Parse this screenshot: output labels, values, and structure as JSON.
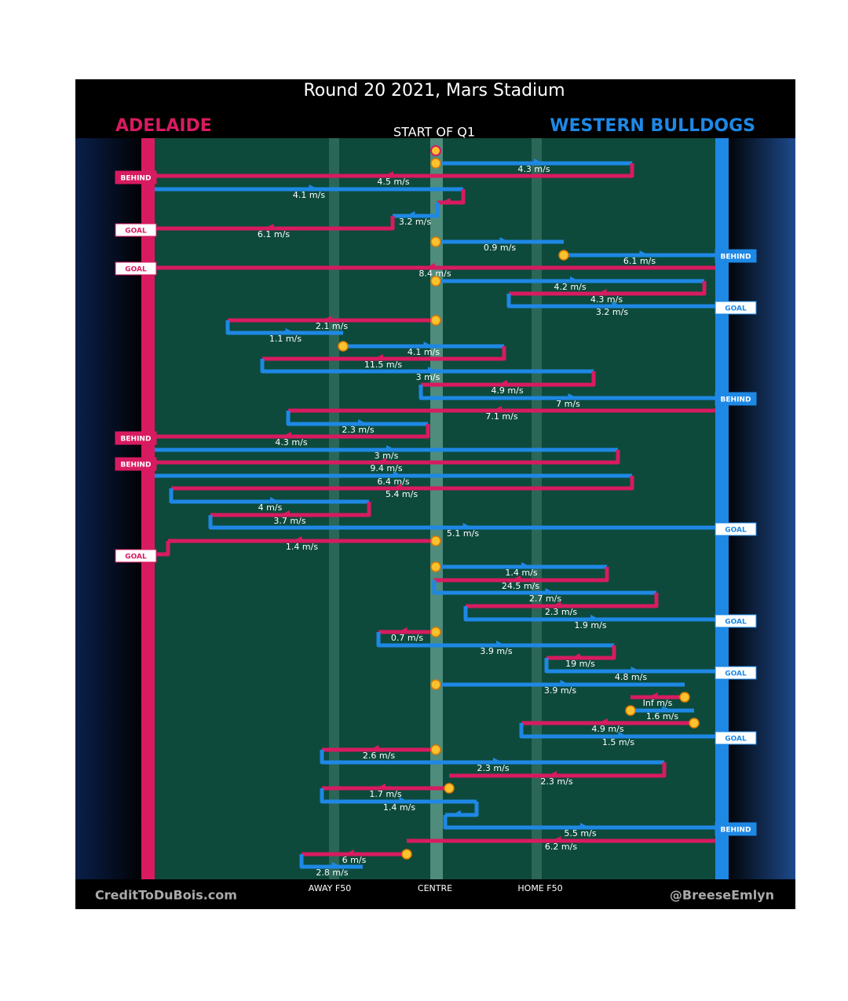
{
  "title": "Round 20 2021, Mars Stadium",
  "away_team": "ADELAIDE",
  "home_team": "WESTERN BULLDOGS",
  "period_label": "START OF Q1",
  "field_labels": [
    "AWAY F50",
    "CENTRE",
    "HOME F50"
  ],
  "credits": {
    "left": "CreditToDuBois.com",
    "right": "@BreeseEmlyn"
  },
  "speeds": [
    "4.3 m/s",
    "4.5 m/s",
    "4.1 m/s",
    "3.2 m/s",
    "6.1 m/s",
    "0.9 m/s",
    "6.1 m/s",
    "8.4 m/s",
    "4.2 m/s",
    "4.3 m/s",
    "3.2 m/s",
    "2.1 m/s",
    "1.1 m/s",
    "4.1 m/s",
    "11.5 m/s",
    "3 m/s",
    "4.9 m/s",
    "7 m/s",
    "7.1 m/s",
    "2.3 m/s",
    "4.3 m/s",
    "3 m/s",
    "9.4 m/s",
    "6.4 m/s",
    "5.4 m/s",
    "4 m/s",
    "3.7 m/s",
    "5.1 m/s",
    "1.4 m/s",
    "1.4 m/s",
    "24.5 m/s",
    "2.7 m/s",
    "2.3 m/s",
    "1.9 m/s",
    "0.7 m/s",
    "3.9 m/s",
    "19 m/s",
    "4.8 m/s",
    "3.9 m/s",
    "Inf m/s",
    "1.6 m/s",
    "4.9 m/s",
    "1.5 m/s",
    "2.6 m/s",
    "2.3 m/s",
    "2.3 m/s",
    "1.7 m/s",
    "1.4 m/s",
    "5.5 m/s",
    "6.2 m/s",
    "6 m/s",
    "2.8 m/s"
  ],
  "outcomes": [
    "BEHIND",
    "GOAL",
    "BEHIND",
    "GOAL",
    "GOAL",
    "BEHIND",
    "BEHIND",
    "BEHIND",
    "GOAL",
    "GOAL",
    "GOAL",
    "GOAL",
    "GOAL",
    "BEHIND"
  ]
}
